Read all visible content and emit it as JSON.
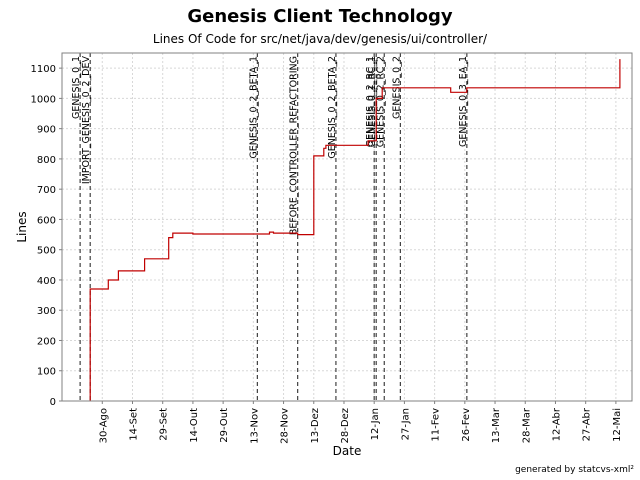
{
  "chart_data": {
    "type": "line",
    "title": "Genesis Client Technology",
    "subtitle": "Lines Of Code for src/net/java/dev/genesis/ui/controller/",
    "xlabel": "Date",
    "ylabel": "Lines",
    "ylim": [
      0,
      1150
    ],
    "y_ticks": [
      0,
      100,
      200,
      300,
      400,
      500,
      600,
      700,
      800,
      900,
      1000,
      1100
    ],
    "x_range": [
      "2004-08-10",
      "2005-05-20"
    ],
    "x_ticks": [
      {
        "date": "2004-08-30",
        "label": "30-Ago"
      },
      {
        "date": "2004-09-14",
        "label": "14-Set"
      },
      {
        "date": "2004-09-29",
        "label": "29-Set"
      },
      {
        "date": "2004-10-14",
        "label": "14-Out"
      },
      {
        "date": "2004-10-29",
        "label": "29-Out"
      },
      {
        "date": "2004-11-13",
        "label": "13-Nov"
      },
      {
        "date": "2004-11-28",
        "label": "28-Nov"
      },
      {
        "date": "2004-12-13",
        "label": "13-Dez"
      },
      {
        "date": "2004-12-28",
        "label": "28-Dez"
      },
      {
        "date": "2005-01-12",
        "label": "12-Jan"
      },
      {
        "date": "2005-01-27",
        "label": "27-Jan"
      },
      {
        "date": "2005-02-11",
        "label": "11-Fev"
      },
      {
        "date": "2005-02-26",
        "label": "26-Fev"
      },
      {
        "date": "2005-03-13",
        "label": "13-Mar"
      },
      {
        "date": "2005-03-28",
        "label": "28-Mar"
      },
      {
        "date": "2005-04-12",
        "label": "12-Abr"
      },
      {
        "date": "2005-04-27",
        "label": "27-Abr"
      },
      {
        "date": "2005-05-12",
        "label": "12-Mai"
      }
    ],
    "grid": true,
    "series": [
      {
        "color": "#c00000",
        "points": [
          {
            "x": "2004-08-24",
            "y": 0
          },
          {
            "x": "2004-08-24",
            "y": 370
          },
          {
            "x": "2004-09-02",
            "y": 370
          },
          {
            "x": "2004-09-02",
            "y": 400
          },
          {
            "x": "2004-09-07",
            "y": 400
          },
          {
            "x": "2004-09-07",
            "y": 430
          },
          {
            "x": "2004-09-20",
            "y": 430
          },
          {
            "x": "2004-09-20",
            "y": 470
          },
          {
            "x": "2004-10-02",
            "y": 470
          },
          {
            "x": "2004-10-02",
            "y": 540
          },
          {
            "x": "2004-10-04",
            "y": 540
          },
          {
            "x": "2004-10-04",
            "y": 555
          },
          {
            "x": "2004-10-14",
            "y": 555
          },
          {
            "x": "2004-10-14",
            "y": 552
          },
          {
            "x": "2004-11-21",
            "y": 552
          },
          {
            "x": "2004-11-21",
            "y": 558
          },
          {
            "x": "2004-11-23",
            "y": 558
          },
          {
            "x": "2004-11-23",
            "y": 555
          },
          {
            "x": "2004-12-05",
            "y": 555
          },
          {
            "x": "2004-12-05",
            "y": 550
          },
          {
            "x": "2004-12-13",
            "y": 550
          },
          {
            "x": "2004-12-13",
            "y": 810
          },
          {
            "x": "2004-12-18",
            "y": 810
          },
          {
            "x": "2004-12-18",
            "y": 835
          },
          {
            "x": "2004-12-19",
            "y": 835
          },
          {
            "x": "2004-12-19",
            "y": 845
          },
          {
            "x": "2005-01-09",
            "y": 845
          },
          {
            "x": "2005-01-09",
            "y": 860
          },
          {
            "x": "2005-01-13",
            "y": 860
          },
          {
            "x": "2005-01-13",
            "y": 1000
          },
          {
            "x": "2005-01-16",
            "y": 1000
          },
          {
            "x": "2005-01-16",
            "y": 1035
          },
          {
            "x": "2005-02-19",
            "y": 1035
          },
          {
            "x": "2005-02-19",
            "y": 1020
          },
          {
            "x": "2005-02-27",
            "y": 1020
          },
          {
            "x": "2005-02-27",
            "y": 1035
          },
          {
            "x": "2005-05-14",
            "y": 1035
          },
          {
            "x": "2005-05-14",
            "y": 1130
          }
        ]
      }
    ],
    "markers": [
      {
        "date": "2004-08-19",
        "label": "GENESIS_0_1"
      },
      {
        "date": "2004-08-24",
        "label": "IMPORT_GENESIS_0_2_DEV"
      },
      {
        "date": "2004-11-15",
        "label": "GENESIS_0_2_BETA_1"
      },
      {
        "date": "2004-12-05",
        "label": "BEFORE_CONTROLLER_REFACTORING"
      },
      {
        "date": "2004-12-24",
        "label": "GENESIS_0_2_BETA_2"
      },
      {
        "date": "2005-01-12",
        "label": "GENESIS_0_2_RC_1"
      },
      {
        "date": "2005-01-13",
        "label": "GENESIS_0_1_RC_1"
      },
      {
        "date": "2005-01-17",
        "label": "GENESIS_0_2_RC_2"
      },
      {
        "date": "2005-01-25",
        "label": "GENESIS_0_2"
      },
      {
        "date": "2005-02-27",
        "label": "GENESIS_0_3_EA_1"
      }
    ],
    "footer": "generated by statcvs-xml²"
  }
}
